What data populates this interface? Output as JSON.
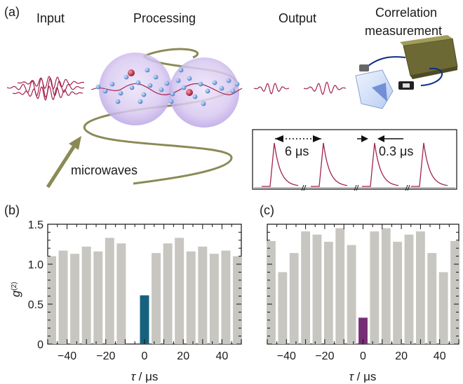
{
  "panel_a": {
    "panel_label": "(a)",
    "input_label": "Input",
    "processing_label": "Processing",
    "output_label": "Output",
    "correlation_line1": "Correlation",
    "correlation_line2": "measurement",
    "microwaves_label": "microwaves",
    "inset_6us": "6 μs",
    "inset_03us": "0.3 μs"
  },
  "colors": {
    "bar_gray": "#c8c6c0",
    "bar_center_b": "#17617e",
    "bar_center_c": "#772e75",
    "pulse": "#a3234f",
    "helix": "#8a8a55",
    "sphere_fill": "#d7c8ef"
  },
  "chart_data": [
    {
      "type": "bar",
      "panel_label": "(b)",
      "xlabel_symbol": "τ",
      "xlabel_unit": " / μs",
      "ylabel_base": "g",
      "ylabel_sup": "(2)",
      "xlim": [
        -50,
        50
      ],
      "ylim": [
        0,
        1.5
      ],
      "x": [
        -48,
        -42,
        -36,
        -30,
        -24,
        -18,
        -12,
        -6,
        0,
        6,
        12,
        18,
        24,
        30,
        36,
        42,
        48
      ],
      "values": [
        1.1,
        1.17,
        1.13,
        1.22,
        1.16,
        1.33,
        1.26,
        0.0,
        0.61,
        1.14,
        1.26,
        1.33,
        1.16,
        1.22,
        1.13,
        1.17,
        1.1
      ],
      "highlight_index": 8,
      "xticks": [
        "−40",
        "−20",
        "0",
        "20",
        "40"
      ],
      "xtick_values": [
        -40,
        -20,
        0,
        20,
        40
      ],
      "yticks": [
        "0",
        "0.5",
        "1.0",
        "1.5"
      ],
      "ytick_values": [
        0,
        0.5,
        1.0,
        1.5
      ]
    },
    {
      "type": "bar",
      "panel_label": "(c)",
      "xlabel_symbol": "τ",
      "xlabel_unit": " / μs",
      "xlim": [
        -50,
        50
      ],
      "ylim": [
        0,
        1.5
      ],
      "x": [
        -48,
        -42,
        -36,
        -30,
        -24,
        -18,
        -12,
        -6,
        0,
        6,
        12,
        18,
        24,
        30,
        36,
        42,
        48
      ],
      "values": [
        1.29,
        0.9,
        1.14,
        1.41,
        1.37,
        1.28,
        1.45,
        1.24,
        0.33,
        1.41,
        1.45,
        1.28,
        1.37,
        1.41,
        1.14,
        0.9,
        1.29
      ],
      "highlight_index": 8,
      "xticks": [
        "−40",
        "−20",
        "0",
        "20",
        "40"
      ],
      "xtick_values": [
        -40,
        -20,
        0,
        20,
        40
      ],
      "yticks": [
        "0",
        "0.5",
        "1.0",
        "1.5"
      ],
      "ytick_values": [
        0,
        0.5,
        1.0,
        1.5
      ]
    }
  ]
}
